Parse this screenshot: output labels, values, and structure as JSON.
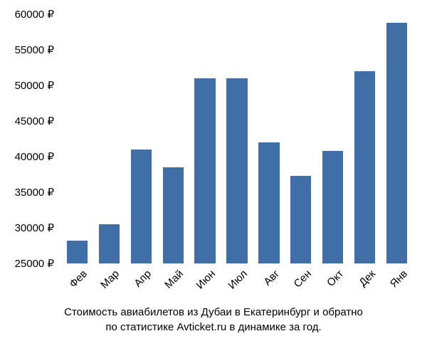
{
  "chart": {
    "type": "bar",
    "categories": [
      "Фев",
      "Мар",
      "Апр",
      "Май",
      "Июн",
      "Июл",
      "Авг",
      "Сен",
      "Окт",
      "Дек",
      "Янв"
    ],
    "values": [
      28200,
      30500,
      41000,
      38500,
      51000,
      51000,
      42000,
      37300,
      40800,
      52000,
      58800
    ],
    "bar_color": "#3f6fa6",
    "ylim": [
      25000,
      60000
    ],
    "ytick_step": 5000,
    "ytick_labels": [
      "25000 ₽",
      "30000 ₽",
      "35000 ₽",
      "40000 ₽",
      "45000 ₽",
      "50000 ₽",
      "55000 ₽",
      "60000 ₽"
    ],
    "background_color": "#ffffff",
    "bar_width": 0.65,
    "label_fontsize": 15,
    "text_color": "#000000"
  },
  "caption": {
    "line1": "Стоимость авиабилетов из Дубаи в Екатеринбург и обратно",
    "line2": "по статистике Avticket.ru в динамике за год."
  }
}
